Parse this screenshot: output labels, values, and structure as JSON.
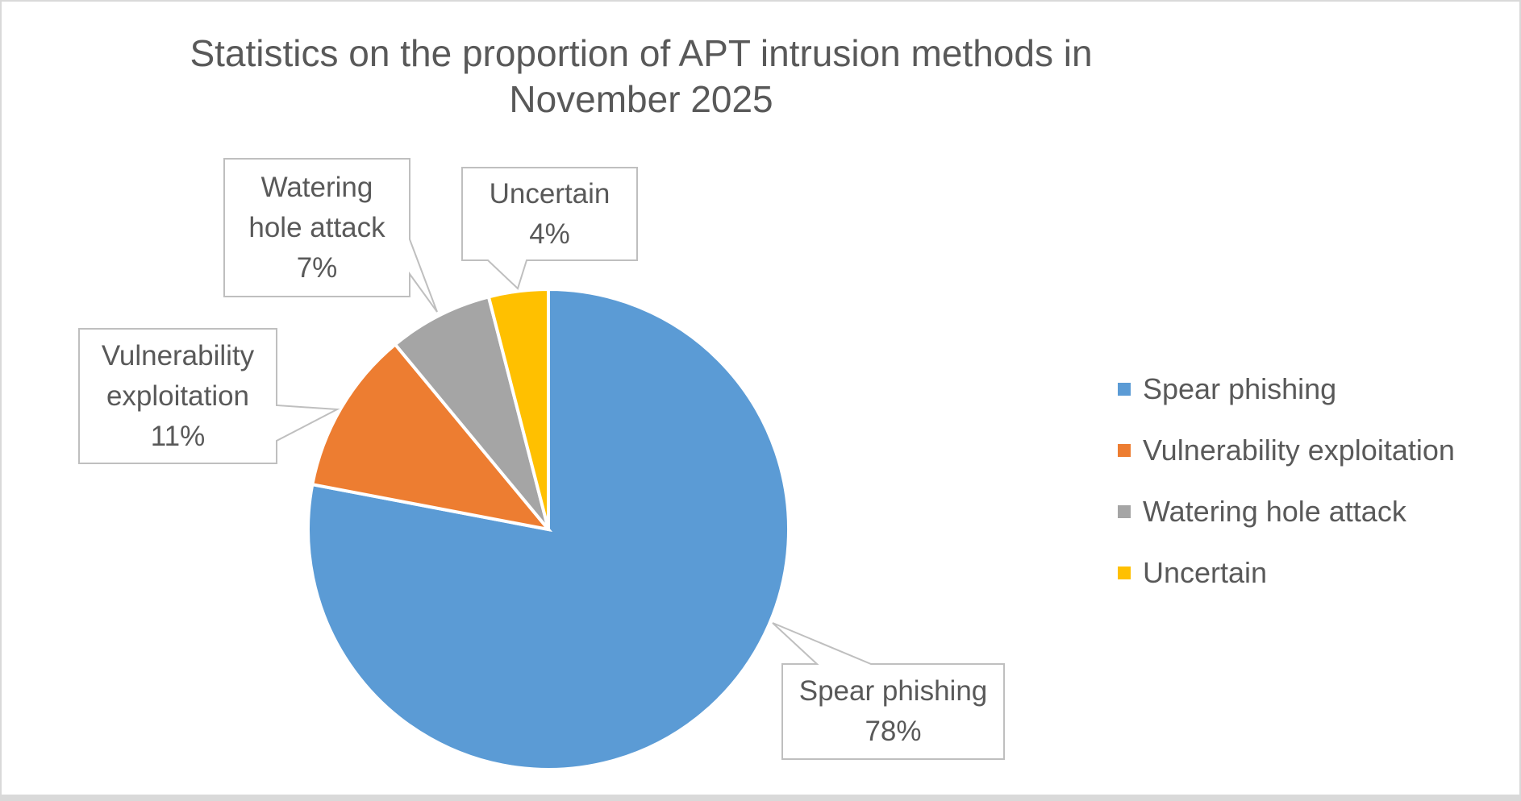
{
  "page": {
    "background": "#FFFFFF",
    "border_color": "#D9D9D9",
    "text_color": "#595959",
    "callout_border_color": "#BFBFBF"
  },
  "chart": {
    "title_lines": [
      "Statistics on the proportion of APT intrusion methods in",
      "November 2025"
    ]
  },
  "chart_data": {
    "type": "pie",
    "title": "Statistics on the proportion of APT intrusion methods in November 2025",
    "categories": [
      "Spear phishing",
      "Vulnerability exploitation",
      "Watering hole attack",
      "Uncertain"
    ],
    "values": [
      78,
      11,
      7,
      4
    ],
    "unit": "%",
    "colors": [
      "#5B9BD5",
      "#ED7D31",
      "#A5A5A5",
      "#FFC000"
    ],
    "start_angle_deg": 0,
    "direction": "clockwise",
    "slice_border_color": "#FFFFFF",
    "legend_position": "right",
    "data_labels_shown": true
  },
  "legend": {
    "items": [
      {
        "label": "Spear phishing",
        "color": "#5B9BD5"
      },
      {
        "label": "Vulnerability exploitation",
        "color": "#ED7D31"
      },
      {
        "label": "Watering hole attack",
        "color": "#A5A5A5"
      },
      {
        "label": "Uncertain",
        "color": "#FFC000"
      }
    ]
  },
  "callouts": [
    {
      "category": "Watering hole attack",
      "lines": [
        "Watering",
        "hole attack",
        "7%"
      ]
    },
    {
      "category": "Uncertain",
      "lines": [
        "Uncertain",
        "4%"
      ]
    },
    {
      "category": "Vulnerability exploitation",
      "lines": [
        "Vulnerability",
        "exploitation",
        "11%"
      ]
    },
    {
      "category": "Spear phishing",
      "lines": [
        "Spear phishing",
        "78%"
      ]
    }
  ]
}
